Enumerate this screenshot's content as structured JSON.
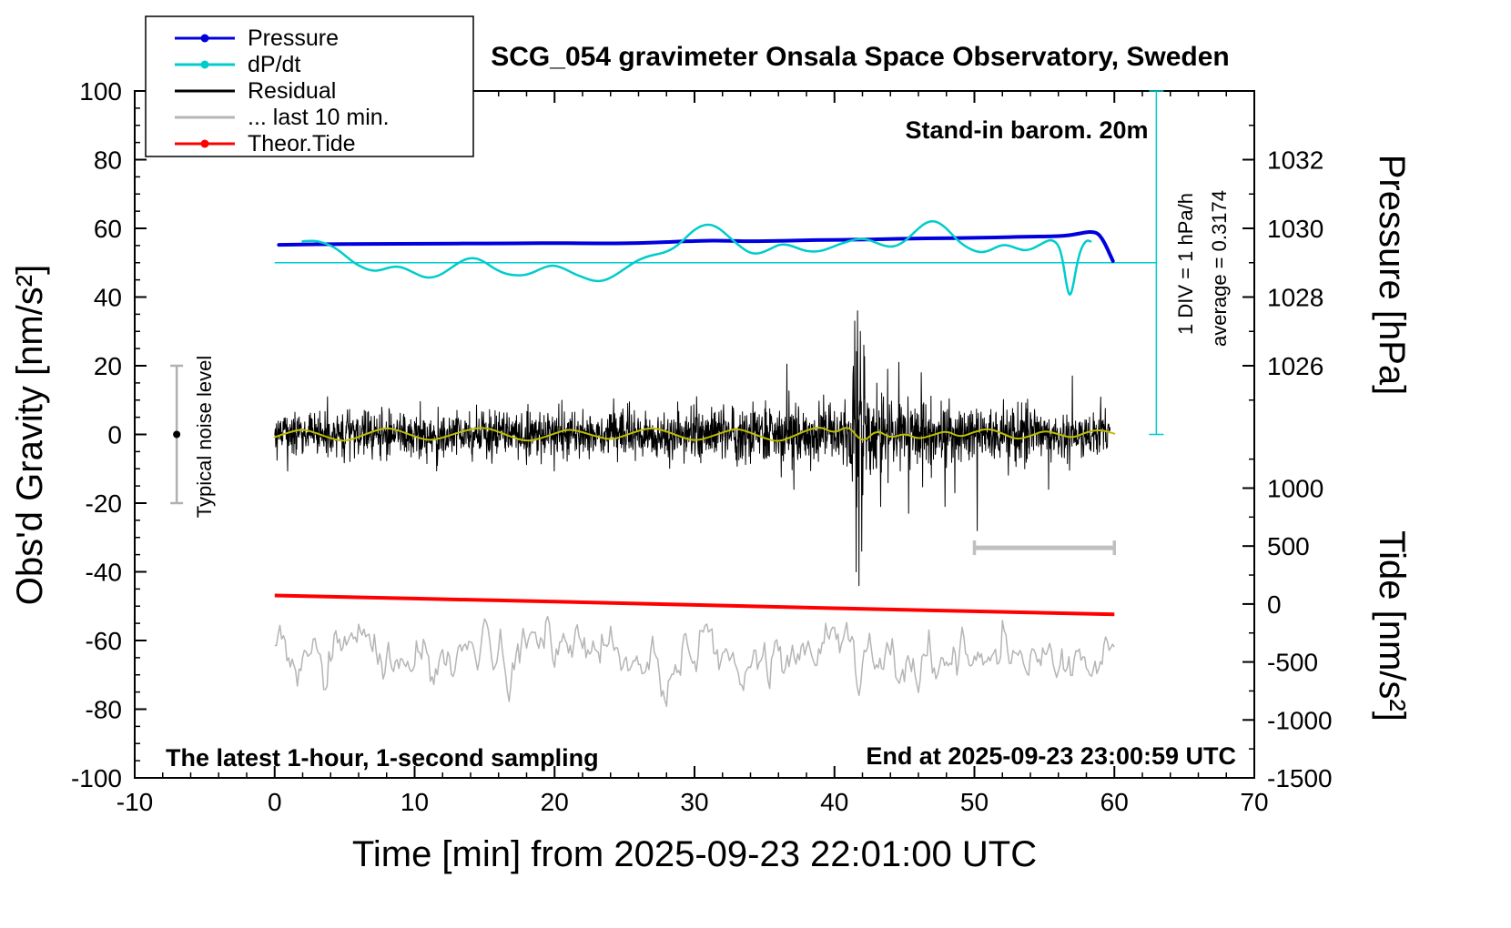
{
  "title": "SCG_054 gravimeter Onsala Space Observatory, Sweden",
  "annotations": {
    "stand_in": "Stand-in barom. 20m",
    "div_scale": "1 DIV = 1 hPa/h",
    "average": "average = 0.3174",
    "noise_level": "Typical noise level",
    "sampling": "The latest 1-hour, 1-second sampling",
    "end_time": "End at 2025-09-23 23:00:59 UTC"
  },
  "legend": {
    "items": [
      {
        "label": "Pressure",
        "color": "#0000dd",
        "marker": true
      },
      {
        "label": "dP/dt",
        "color": "#00cccc",
        "marker": true
      },
      {
        "label": "Residual",
        "color": "#000000",
        "marker": false
      },
      {
        "label": "... last 10 min.",
        "color": "#b5b5b5",
        "marker": false
      },
      {
        "label": "Theor.Tide",
        "color": "#ff0000",
        "marker": true
      }
    ]
  },
  "axes": {
    "x": {
      "label": "Time [min] from 2025-09-23 22:01:00 UTC",
      "min": -10,
      "max": 70,
      "major_ticks": [
        -10,
        0,
        10,
        20,
        30,
        40,
        50,
        60,
        70
      ],
      "minor_step": 2
    },
    "y_left": {
      "label": "Obs'd Gravity [nm/s²]",
      "min": -100,
      "max": 100,
      "major_step": 20,
      "minor_step": 5
    },
    "y_right_pressure": {
      "label": "Pressure [hPa]",
      "unit": "hPa",
      "ticks": [
        {
          "label": "1026",
          "gravity": 20
        },
        {
          "label": "1028",
          "gravity": 40
        },
        {
          "label": "1030",
          "gravity": 60
        },
        {
          "label": "1032",
          "gravity": 80
        }
      ],
      "minor_gravity": [
        10,
        30,
        50,
        70,
        90
      ],
      "mapping": {
        "hpa_at_gravity_0": 1024,
        "gravity_per_hpa": 10
      }
    },
    "y_right_tide": {
      "label": "Tide [nm/s²]",
      "unit": "nm/s²",
      "ticks": [
        {
          "label": "-1500",
          "gravity": -100
        },
        {
          "label": "-1000",
          "gravity": -83.13
        },
        {
          "label": "-500",
          "gravity": -66.25
        },
        {
          "label": "0",
          "gravity": -49.38
        },
        {
          "label": "500",
          "gravity": -32.5
        },
        {
          "label": "1000",
          "gravity": -15.63
        }
      ],
      "minor_gravity": [
        -91.56,
        -74.69,
        -57.81,
        -40.94,
        -24.06,
        -7.19
      ]
    }
  },
  "chart_data": {
    "type": "line",
    "x_unit": "minutes from 2025-09-23 22:01:00 UTC",
    "series": [
      {
        "name": "Pressure",
        "axis": "pressure_hpa",
        "color": "#0000dd",
        "width": 4,
        "points": [
          [
            0.3,
            1029.52
          ],
          [
            2,
            1029.53
          ],
          [
            4,
            1029.54
          ],
          [
            6,
            1029.545
          ],
          [
            8,
            1029.55
          ],
          [
            10,
            1029.55
          ],
          [
            12,
            1029.555
          ],
          [
            14,
            1029.56
          ],
          [
            16,
            1029.56
          ],
          [
            18,
            1029.565
          ],
          [
            20,
            1029.57
          ],
          [
            22,
            1029.565
          ],
          [
            24,
            1029.56
          ],
          [
            26,
            1029.57
          ],
          [
            28,
            1029.6
          ],
          [
            29,
            1029.62
          ],
          [
            30,
            1029.63
          ],
          [
            31,
            1029.645
          ],
          [
            32,
            1029.64
          ],
          [
            33,
            1029.63
          ],
          [
            34,
            1029.625
          ],
          [
            35,
            1029.63
          ],
          [
            36,
            1029.635
          ],
          [
            37,
            1029.645
          ],
          [
            38,
            1029.655
          ],
          [
            39,
            1029.66
          ],
          [
            40,
            1029.665
          ],
          [
            41,
            1029.67
          ],
          [
            42,
            1029.675
          ],
          [
            43,
            1029.68
          ],
          [
            44,
            1029.69
          ],
          [
            45,
            1029.7
          ],
          [
            46,
            1029.705
          ],
          [
            47,
            1029.71
          ],
          [
            48,
            1029.715
          ],
          [
            49,
            1029.72
          ],
          [
            50,
            1029.725
          ],
          [
            51,
            1029.73
          ],
          [
            52,
            1029.74
          ],
          [
            53,
            1029.75
          ],
          [
            54,
            1029.755
          ],
          [
            55,
            1029.765
          ],
          [
            56,
            1029.775
          ],
          [
            56.8,
            1029.8
          ],
          [
            57.5,
            1029.85
          ],
          [
            58,
            1029.89
          ],
          [
            58.4,
            1029.9
          ],
          [
            58.8,
            1029.86
          ],
          [
            59.1,
            1029.72
          ],
          [
            59.4,
            1029.5
          ],
          [
            59.7,
            1029.22
          ],
          [
            59.9,
            1029.05
          ]
        ]
      },
      {
        "name": "dP/dt",
        "axis": "gravity_left_units",
        "units_note": "baseline 50 = 0 hPa/h, 1 DIV (10 units) = 1 hPa/h",
        "average_hpa_per_h": 0.3174,
        "color": "#00cccc",
        "width": 2.5,
        "points": [
          [
            2,
            56.2
          ],
          [
            2.5,
            56.4
          ],
          [
            3,
            56.3
          ],
          [
            3.5,
            55.8
          ],
          [
            4,
            55.0
          ],
          [
            4.5,
            53.8
          ],
          [
            5,
            52.2
          ],
          [
            5.5,
            50.5
          ],
          [
            6,
            49.2
          ],
          [
            6.5,
            48.2
          ],
          [
            7,
            47.6
          ],
          [
            7.5,
            47.8
          ],
          [
            8,
            48.4
          ],
          [
            8.5,
            48.9
          ],
          [
            9,
            48.8
          ],
          [
            9.5,
            48.0
          ],
          [
            10,
            47.0
          ],
          [
            10.5,
            46.0
          ],
          [
            11,
            45.6
          ],
          [
            11.5,
            45.9
          ],
          [
            12,
            46.8
          ],
          [
            12.5,
            48.2
          ],
          [
            13,
            49.6
          ],
          [
            13.5,
            50.8
          ],
          [
            14,
            51.4
          ],
          [
            14.5,
            51.2
          ],
          [
            15,
            50.2
          ],
          [
            15.5,
            48.8
          ],
          [
            16,
            47.6
          ],
          [
            16.5,
            46.8
          ],
          [
            17,
            46.4
          ],
          [
            17.5,
            46.3
          ],
          [
            18,
            46.5
          ],
          [
            18.5,
            47.2
          ],
          [
            19,
            48.2
          ],
          [
            19.5,
            49.0
          ],
          [
            20,
            49.2
          ],
          [
            20.5,
            48.6
          ],
          [
            21,
            47.6
          ],
          [
            21.5,
            46.6
          ],
          [
            22,
            45.8
          ],
          [
            22.5,
            45.0
          ],
          [
            23,
            44.6
          ],
          [
            23.5,
            44.8
          ],
          [
            24,
            45.6
          ],
          [
            24.5,
            46.8
          ],
          [
            25,
            48.2
          ],
          [
            25.5,
            49.6
          ],
          [
            26,
            50.8
          ],
          [
            26.5,
            51.6
          ],
          [
            27,
            52.2
          ],
          [
            27.5,
            52.6
          ],
          [
            28,
            53.2
          ],
          [
            28.5,
            54.2
          ],
          [
            29,
            55.8
          ],
          [
            29.5,
            57.8
          ],
          [
            30,
            59.6
          ],
          [
            30.5,
            60.8
          ],
          [
            31,
            61.2
          ],
          [
            31.5,
            60.6
          ],
          [
            32,
            59.2
          ],
          [
            32.5,
            57.4
          ],
          [
            33,
            55.6
          ],
          [
            33.5,
            54.0
          ],
          [
            34,
            52.8
          ],
          [
            34.5,
            52.6
          ],
          [
            35,
            53.2
          ],
          [
            35.5,
            54.2
          ],
          [
            36,
            55.2
          ],
          [
            36.5,
            55.4
          ],
          [
            37,
            54.8
          ],
          [
            37.5,
            54.0
          ],
          [
            38,
            53.4
          ],
          [
            38.5,
            53.2
          ],
          [
            39,
            53.4
          ],
          [
            39.5,
            54.0
          ],
          [
            40,
            54.8
          ],
          [
            40.5,
            55.6
          ],
          [
            41,
            56.2
          ],
          [
            41.5,
            56.8
          ],
          [
            42,
            57.0
          ],
          [
            42.5,
            56.6
          ],
          [
            43,
            55.8
          ],
          [
            43.5,
            55.0
          ],
          [
            44,
            54.6
          ],
          [
            44.5,
            55.0
          ],
          [
            45,
            56.2
          ],
          [
            45.5,
            58.0
          ],
          [
            46,
            60.0
          ],
          [
            46.5,
            61.6
          ],
          [
            47,
            62.2
          ],
          [
            47.5,
            61.6
          ],
          [
            48,
            60.0
          ],
          [
            48.5,
            57.8
          ],
          [
            49,
            55.8
          ],
          [
            49.5,
            54.4
          ],
          [
            50,
            53.4
          ],
          [
            50.5,
            53.0
          ],
          [
            51,
            53.4
          ],
          [
            51.5,
            54.4
          ],
          [
            52,
            55.2
          ],
          [
            52.5,
            55.0
          ],
          [
            53,
            54.2
          ],
          [
            53.5,
            53.6
          ],
          [
            54,
            53.8
          ],
          [
            54.5,
            54.8
          ],
          [
            55,
            56.0
          ],
          [
            55.5,
            56.8
          ],
          [
            56,
            55.4
          ],
          [
            56.3,
            51.0
          ],
          [
            56.6,
            43.0
          ],
          [
            56.8,
            40.2
          ],
          [
            57,
            42.0
          ],
          [
            57.3,
            49.0
          ],
          [
            57.6,
            54.0
          ],
          [
            58,
            56.6
          ],
          [
            58.3,
            56.2
          ]
        ]
      },
      {
        "name": "Residual",
        "axis": "gravity_left_units",
        "color": "#000000",
        "width": 1,
        "noise": {
          "seed": 12345,
          "samples_per_min": 40,
          "x_from": 0,
          "x_to": 59.7,
          "std_profile": [
            [
              0,
              3.3
            ],
            [
              10,
              3.3
            ],
            [
              20,
              3.4
            ],
            [
              28,
              3.5
            ],
            [
              33,
              3.8
            ],
            [
              36,
              4.3
            ],
            [
              39,
              4.3
            ],
            [
              40.5,
              4.6
            ],
            [
              41.1,
              7
            ],
            [
              41.4,
              13
            ],
            [
              41.7,
              14
            ],
            [
              42,
              10
            ],
            [
              42.4,
              7
            ],
            [
              43,
              6
            ],
            [
              44,
              5.5
            ],
            [
              45,
              5.2
            ],
            [
              46,
              5
            ],
            [
              47,
              4.8
            ],
            [
              48,
              4.6
            ],
            [
              49,
              4.3
            ],
            [
              50,
              4.1
            ],
            [
              52,
              3.8
            ],
            [
              54,
              3.6
            ],
            [
              56,
              3.5
            ],
            [
              58,
              3.4
            ],
            [
              59.7,
              3.4
            ]
          ],
          "spikes": [
            [
              36.6,
              20.5
            ],
            [
              37.1,
              -16
            ],
            [
              41.45,
              33
            ],
            [
              41.55,
              -40
            ],
            [
              41.65,
              36
            ],
            [
              41.75,
              -44
            ],
            [
              41.85,
              30
            ],
            [
              41.95,
              -34
            ],
            [
              42.1,
              26
            ],
            [
              43.3,
              -21
            ],
            [
              43.8,
              19
            ],
            [
              44.6,
              21
            ],
            [
              45.3,
              -23
            ],
            [
              46.2,
              18
            ],
            [
              47.9,
              -21
            ],
            [
              48.6,
              -17
            ],
            [
              50.2,
              -28
            ],
            [
              55.3,
              -16
            ],
            [
              57.0,
              17
            ]
          ]
        }
      },
      {
        "name": "Residual smoothed",
        "axis": "gravity_left_units",
        "color": "#bdbd00",
        "width": 2,
        "x_start": 0,
        "x_step": 1,
        "values": [
          -0.8,
          0.6,
          1.6,
          0.4,
          -1.2,
          -2.0,
          -0.8,
          0.9,
          2.0,
          1.0,
          -0.6,
          -1.8,
          -1.0,
          0.4,
          1.5,
          2.1,
          0.8,
          -0.9,
          -2.0,
          -1.2,
          0.3,
          1.6,
          0.7,
          -0.6,
          -1.6,
          -0.4,
          1.1,
          2.0,
          0.9,
          -0.7,
          -1.9,
          -0.9,
          0.6,
          1.8,
          0.5,
          -1.1,
          -2.2,
          -0.6,
          1.2,
          2.3,
          0.2,
          2.8,
          -2.7,
          1.5,
          -1.2,
          0.4,
          -1.4,
          -0.2,
          1.1,
          -0.9,
          0.8,
          1.8,
          0.3,
          -1.5,
          -0.5,
          1.2,
          0.1,
          -1.1,
          0.7,
          1.4,
          0.2
        ]
      },
      {
        "name": "... last 10 min.",
        "axis": "gravity_left_units",
        "color": "#b5b5b5",
        "width": 1.5,
        "noise_ar": {
          "seed": 777,
          "samples_per_min": 8,
          "x_from": 0,
          "x_to": 60,
          "mean": -64,
          "ar": 0.78,
          "sigma": 3.0,
          "visual_range": [
            -73,
            -55
          ]
        }
      },
      {
        "name": "Theor.Tide",
        "axis": "gravity_left_units",
        "tide_units_range": [
          74,
          -89
        ],
        "color": "#ff0000",
        "width": 4,
        "points": [
          [
            0,
            -46.9
          ],
          [
            10,
            -47.8
          ],
          [
            20,
            -48.7
          ],
          [
            30,
            -49.65
          ],
          [
            40,
            -50.6
          ],
          [
            50,
            -51.5
          ],
          [
            60,
            -52.4
          ]
        ]
      }
    ],
    "reference": {
      "dpdt_zero_line": {
        "gravity": 50,
        "x_from": 0,
        "x_to": 63,
        "color": "#00cccc"
      },
      "dpdt_scale_axis": {
        "x": 63,
        "gravity_from": 0,
        "gravity_to": 100,
        "color": "#00cccc"
      },
      "scale_bar": {
        "x_from": 50,
        "x_to": 60,
        "gravity": -33,
        "color": "#c0c0c0"
      },
      "noise_marker": {
        "x": -7,
        "gravity_center": 0,
        "half_range": 20,
        "bar_color": "#b0b0b0",
        "dot_color": "#000000"
      }
    }
  }
}
